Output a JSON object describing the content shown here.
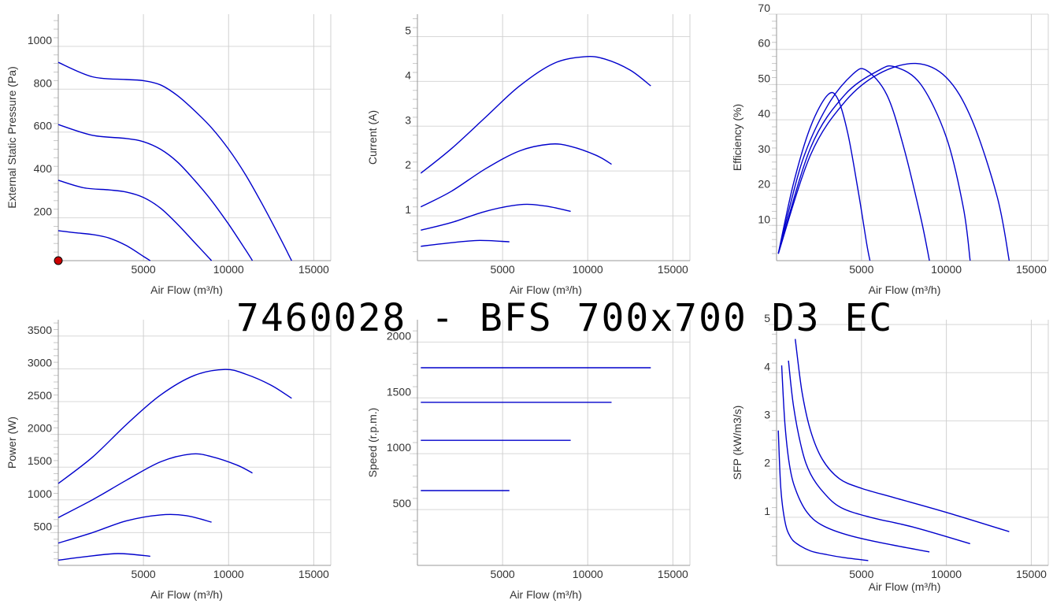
{
  "title": "7460028 -  BFS 700x700 D3 EC",
  "colors": {
    "curve": "#0000cc",
    "grid": "#d0d0d0",
    "marker": "#cc0000"
  },
  "chart_data": [
    {
      "type": "line",
      "xlabel": "Air Flow (m³/h)",
      "ylabel": "External Static Pressure (Pa)",
      "xlim": [
        0,
        16000
      ],
      "ylim": [
        0,
        1150
      ],
      "xticks": [
        5000,
        10000,
        15000
      ],
      "yticks": [
        200,
        400,
        600,
        800,
        1000
      ],
      "series": [
        {
          "x": [
            0,
            2000,
            4000,
            5000,
            6000,
            7000,
            8000,
            9000,
            10000,
            11000,
            12000,
            13000,
            13700
          ],
          "y": [
            925,
            858,
            845,
            840,
            820,
            770,
            700,
            620,
            520,
            400,
            260,
            110,
            0
          ]
        },
        {
          "x": [
            0,
            2000,
            4000,
            5000,
            6000,
            7000,
            8000,
            9000,
            10000,
            11000,
            11400
          ],
          "y": [
            635,
            585,
            570,
            555,
            520,
            460,
            375,
            280,
            170,
            50,
            0
          ]
        },
        {
          "x": [
            0,
            1500,
            3000,
            4000,
            5000,
            6000,
            7000,
            8000,
            9000
          ],
          "y": [
            375,
            340,
            330,
            320,
            295,
            245,
            170,
            85,
            0
          ]
        },
        {
          "x": [
            0,
            1000,
            2000,
            3000,
            4000,
            5000,
            5400
          ],
          "y": [
            140,
            130,
            122,
            105,
            70,
            20,
            0
          ]
        }
      ],
      "marker": {
        "x": 0,
        "y": 0
      }
    },
    {
      "type": "line",
      "xlabel": "Air Flow (m³/h)",
      "ylabel": "Current (A)",
      "xlim": [
        0,
        16000
      ],
      "ylim": [
        0,
        5.5
      ],
      "xticks": [
        5000,
        10000,
        15000
      ],
      "yticks": [
        1,
        2,
        3,
        4,
        5
      ],
      "series": [
        {
          "x": [
            200,
            2000,
            4000,
            6000,
            8000,
            9800,
            11000,
            12500,
            13700
          ],
          "y": [
            1.95,
            2.5,
            3.2,
            3.9,
            4.4,
            4.55,
            4.5,
            4.25,
            3.9
          ]
        },
        {
          "x": [
            200,
            2000,
            4000,
            6000,
            7800,
            9000,
            10500,
            11400
          ],
          "y": [
            1.2,
            1.55,
            2.05,
            2.45,
            2.6,
            2.55,
            2.35,
            2.15
          ]
        },
        {
          "x": [
            200,
            2000,
            4000,
            6000,
            7500,
            9000
          ],
          "y": [
            0.68,
            0.85,
            1.1,
            1.25,
            1.22,
            1.1
          ]
        },
        {
          "x": [
            200,
            1500,
            3500,
            5400
          ],
          "y": [
            0.32,
            0.38,
            0.45,
            0.42
          ]
        }
      ]
    },
    {
      "type": "line",
      "xlabel": "Air Flow (m³/h)",
      "ylabel": "Efficiency (%)",
      "xlim": [
        0,
        16000
      ],
      "ylim": [
        0,
        70
      ],
      "xticks": [
        5000,
        10000,
        15000
      ],
      "yticks": [
        10,
        20,
        30,
        40,
        50,
        60,
        70
      ],
      "series": [
        {
          "x": [
            100,
            1000,
            2000,
            3000,
            3600,
            4200,
            4800,
            5300,
            5500
          ],
          "y": [
            2,
            22,
            38,
            47,
            46,
            36,
            20,
            5,
            0
          ]
        },
        {
          "x": [
            100,
            1500,
            3000,
            4500,
            5300,
            6500,
            7500,
            8500,
            9000
          ],
          "y": [
            2,
            28,
            44,
            53,
            54,
            47,
            32,
            12,
            0
          ]
        },
        {
          "x": [
            100,
            2000,
            4000,
            6000,
            7000,
            8500,
            10000,
            11000,
            11400
          ],
          "y": [
            2,
            32,
            47,
            54,
            55,
            50,
            35,
            15,
            0
          ]
        },
        {
          "x": [
            100,
            2000,
            4000,
            6000,
            8200,
            10000,
            11500,
            13000,
            13700
          ],
          "y": [
            2,
            30,
            45,
            53,
            56,
            52,
            40,
            18,
            0
          ]
        }
      ]
    },
    {
      "type": "line",
      "xlabel": "Air Flow (m³/h)",
      "ylabel": "Power (W)",
      "xlim": [
        0,
        16000
      ],
      "ylim": [
        0,
        3750
      ],
      "xticks": [
        5000,
        10000,
        15000
      ],
      "yticks": [
        500,
        1000,
        1500,
        2000,
        2500,
        3000,
        3500
      ],
      "series": [
        {
          "x": [
            0,
            2000,
            4000,
            6000,
            8000,
            9800,
            11000,
            12500,
            13700
          ],
          "y": [
            1250,
            1650,
            2150,
            2600,
            2900,
            2990,
            2920,
            2750,
            2550
          ]
        },
        {
          "x": [
            0,
            2000,
            4000,
            6000,
            7800,
            9000,
            10500,
            11400
          ],
          "y": [
            730,
            1000,
            1300,
            1580,
            1700,
            1660,
            1530,
            1410
          ]
        },
        {
          "x": [
            0,
            2000,
            4000,
            6000,
            7500,
            9000
          ],
          "y": [
            340,
            500,
            680,
            770,
            760,
            660
          ]
        },
        {
          "x": [
            0,
            1500,
            3500,
            5400
          ],
          "y": [
            80,
            130,
            180,
            140
          ]
        }
      ]
    },
    {
      "type": "line",
      "xlabel": "Air Flow (m³/h)",
      "ylabel": "Speed (r.p.m.)",
      "xlim": [
        0,
        16000
      ],
      "ylim": [
        0,
        2200
      ],
      "xticks": [
        5000,
        10000,
        15000
      ],
      "yticks": [
        500,
        1000,
        1500,
        2000
      ],
      "series": [
        {
          "x": [
            200,
            13700
          ],
          "y": [
            1770,
            1770
          ]
        },
        {
          "x": [
            200,
            11400
          ],
          "y": [
            1460,
            1460
          ]
        },
        {
          "x": [
            200,
            9000
          ],
          "y": [
            1120,
            1120
          ]
        },
        {
          "x": [
            200,
            5400
          ],
          "y": [
            670,
            670
          ]
        }
      ]
    },
    {
      "type": "line",
      "xlabel": "Air Flow (m³/h)",
      "ylabel": "SFP (kW/m3/s)",
      "xlim": [
        0,
        16000
      ],
      "ylim": [
        0,
        5.1
      ],
      "xticks": [
        5000,
        10000,
        15000
      ],
      "yticks": [
        1,
        2,
        3,
        4,
        5
      ],
      "series": [
        {
          "x": [
            100,
            250,
            500,
            800,
            1200,
            2000,
            3000,
            4000,
            5400
          ],
          "y": [
            2.8,
            1.6,
            0.9,
            0.6,
            0.45,
            0.3,
            0.22,
            0.16,
            0.1
          ]
        },
        {
          "x": [
            300,
            500,
            800,
            1200,
            1800,
            2600,
            4000,
            6000,
            9000
          ],
          "y": [
            4.15,
            2.9,
            2.0,
            1.5,
            1.1,
            0.85,
            0.65,
            0.48,
            0.28
          ]
        },
        {
          "x": [
            700,
            1000,
            1500,
            2000,
            2800,
            3800,
            5500,
            8000,
            11400
          ],
          "y": [
            4.25,
            3.3,
            2.4,
            1.9,
            1.5,
            1.2,
            1.0,
            0.8,
            0.45
          ]
        },
        {
          "x": [
            1100,
            1500,
            2000,
            2700,
            3700,
            5000,
            7000,
            10000,
            13700
          ],
          "y": [
            4.7,
            3.6,
            2.8,
            2.2,
            1.8,
            1.6,
            1.4,
            1.1,
            0.7
          ]
        }
      ]
    }
  ]
}
